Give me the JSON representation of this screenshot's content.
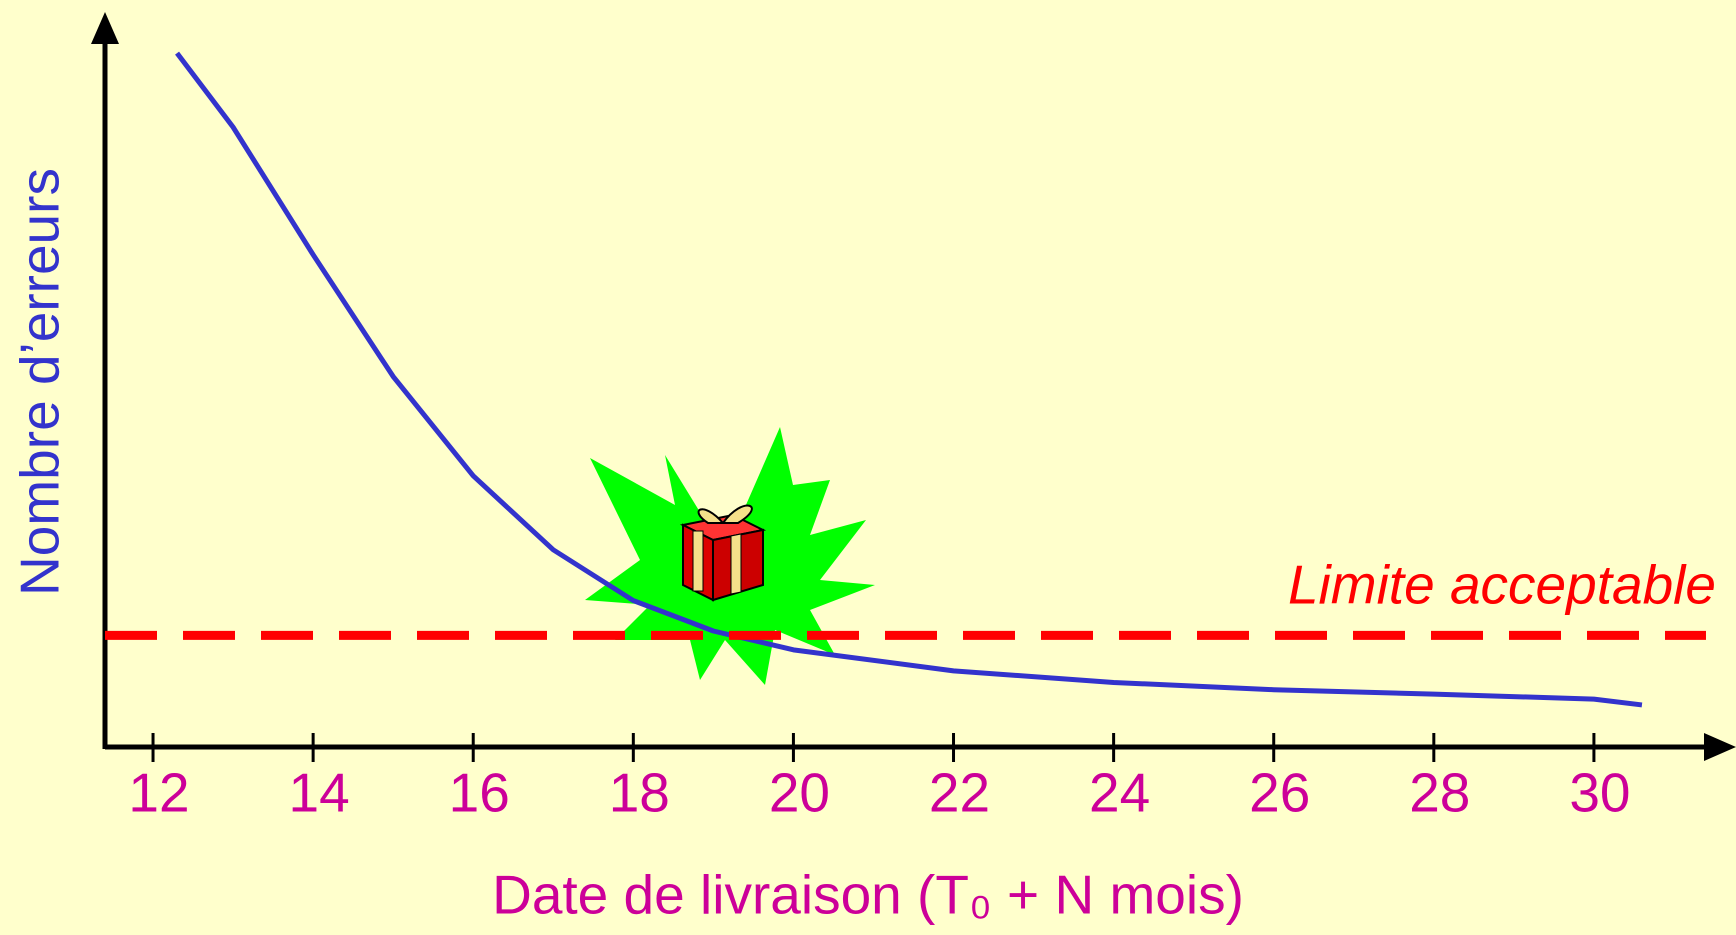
{
  "chart_data": {
    "type": "line",
    "x_label": "Date de livraison (T₀ + N mois)",
    "y_label": "Nombre d’erreurs",
    "xlim": [
      11.4,
      31.7
    ],
    "xticks": [
      12,
      14,
      16,
      18,
      20,
      22,
      24,
      26,
      28,
      30
    ],
    "ylim": [
      0,
      100
    ],
    "series": [
      {
        "color": "#3333cc",
        "x": [
          12.3,
          13,
          14,
          15,
          16,
          17,
          18,
          19,
          20,
          22,
          24,
          26,
          28,
          30,
          30.6
        ],
        "values": [
          95.7,
          85.5,
          67.9,
          51.1,
          37.4,
          27.2,
          20.2,
          16.0,
          13.4,
          10.5,
          8.9,
          7.9,
          7.3,
          6.6,
          5.8
        ]
      }
    ],
    "reference_line": {
      "label": "Limite acceptable",
      "value": 15.4,
      "x": [
        11.4,
        31.4
      ],
      "color": "#ff0000"
    }
  }
}
